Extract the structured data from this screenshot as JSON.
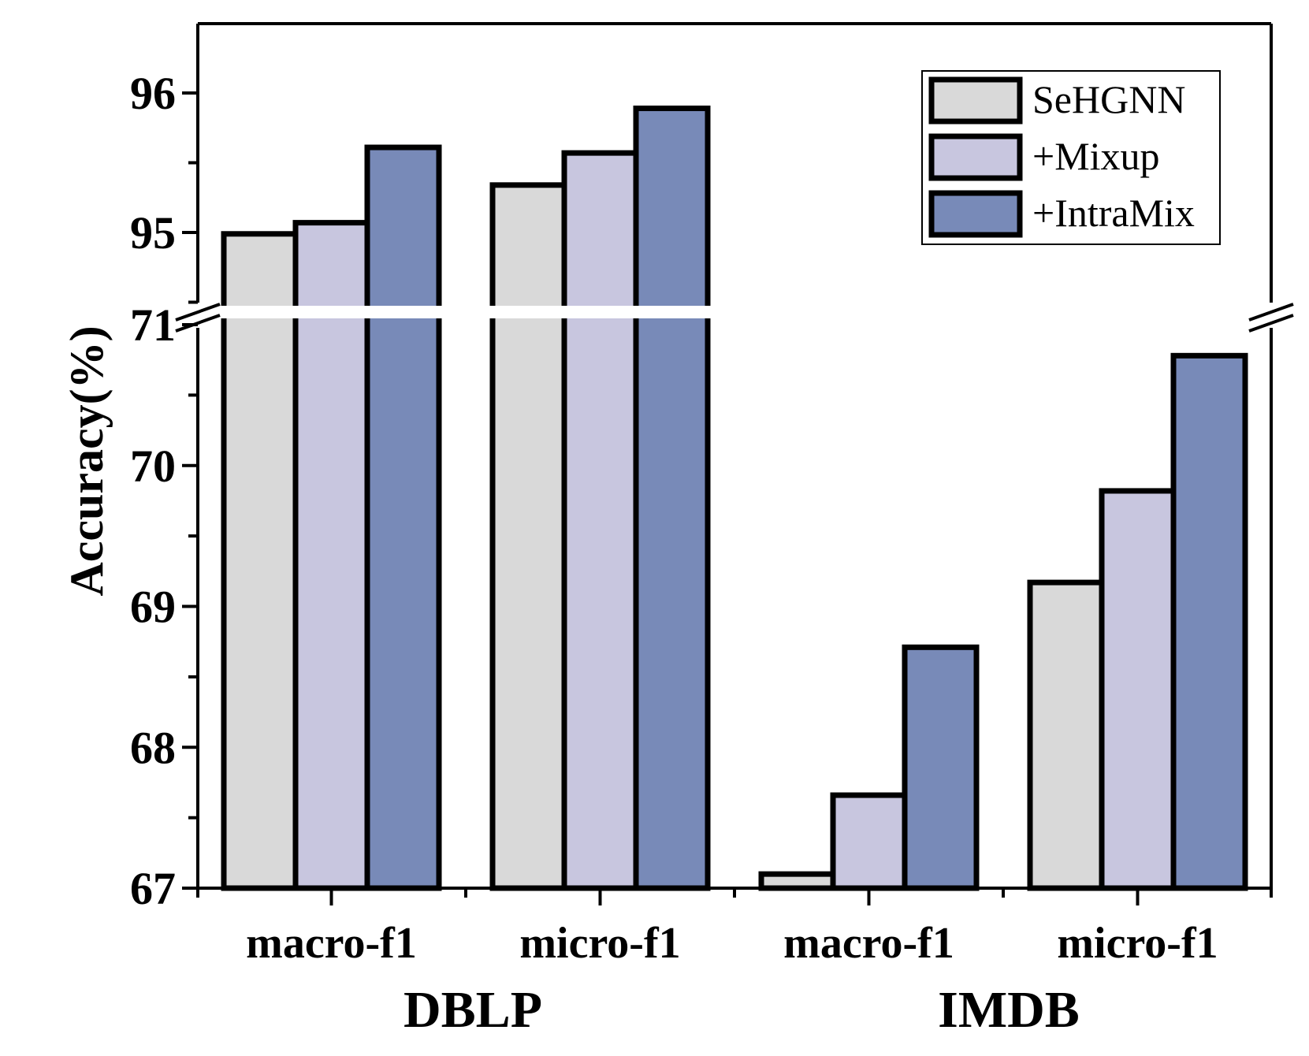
{
  "chart_data": {
    "type": "bar",
    "ylabel": "Accuracy(%)",
    "groups": [
      {
        "label": "DBLP",
        "categories": [
          "macro-f1",
          "micro-f1"
        ]
      },
      {
        "label": "IMDB",
        "categories": [
          "macro-f1",
          "micro-f1"
        ]
      }
    ],
    "series": [
      {
        "name": "SeHGNN",
        "color": "#d9d9d9",
        "values": [
          94.99,
          95.34,
          67.1,
          69.17
        ]
      },
      {
        "name": "+Mixup",
        "color": "#c8c6df",
        "values": [
          95.07,
          95.57,
          67.66,
          69.82
        ]
      },
      {
        "name": "+IntraMix",
        "color": "#788ab8",
        "values": [
          95.61,
          95.89,
          68.71,
          70.78
        ]
      }
    ],
    "y_axis_break": {
      "lower_range": [
        67,
        71.1
      ],
      "upper_range": [
        94.5,
        96.5
      ]
    },
    "yticks_lower": [
      67,
      68,
      69,
      70,
      71
    ],
    "yticks_upper": [
      95,
      96
    ],
    "legend_position": "top-right"
  }
}
